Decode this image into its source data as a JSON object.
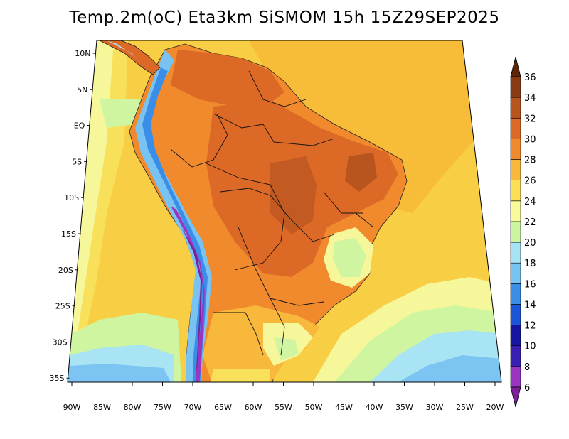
{
  "title": "Temp.2m(oC) Eta3km SiSMOM 15h 15Z29SEP2025",
  "axes": {
    "lat_ticks": [
      "10N",
      "5N",
      "EQ",
      "5S",
      "10S",
      "15S",
      "20S",
      "25S",
      "30S",
      "35S"
    ],
    "lon_ticks": [
      "90W",
      "85W",
      "80W",
      "75W",
      "70W",
      "65W",
      "60W",
      "55W",
      "50W",
      "45W",
      "40W",
      "35W",
      "30W",
      "25W",
      "20W"
    ]
  },
  "colorbar": {
    "labels": [
      "6",
      "8",
      "10",
      "12",
      "14",
      "16",
      "18",
      "20",
      "22",
      "24",
      "26",
      "28",
      "30",
      "32",
      "34",
      "36"
    ],
    "colors": [
      "#7d1f9a",
      "#9a35c2",
      "#3a1fb5",
      "#1616a2",
      "#1b56d8",
      "#3b8ee8",
      "#78c3f2",
      "#a8e3f5",
      "#caf6a0",
      "#f7fb9a",
      "#fbdf58",
      "#f8b83b",
      "#f08a2d",
      "#dc6a26",
      "#b8541e",
      "#8a3a14",
      "#5e2509"
    ]
  }
}
